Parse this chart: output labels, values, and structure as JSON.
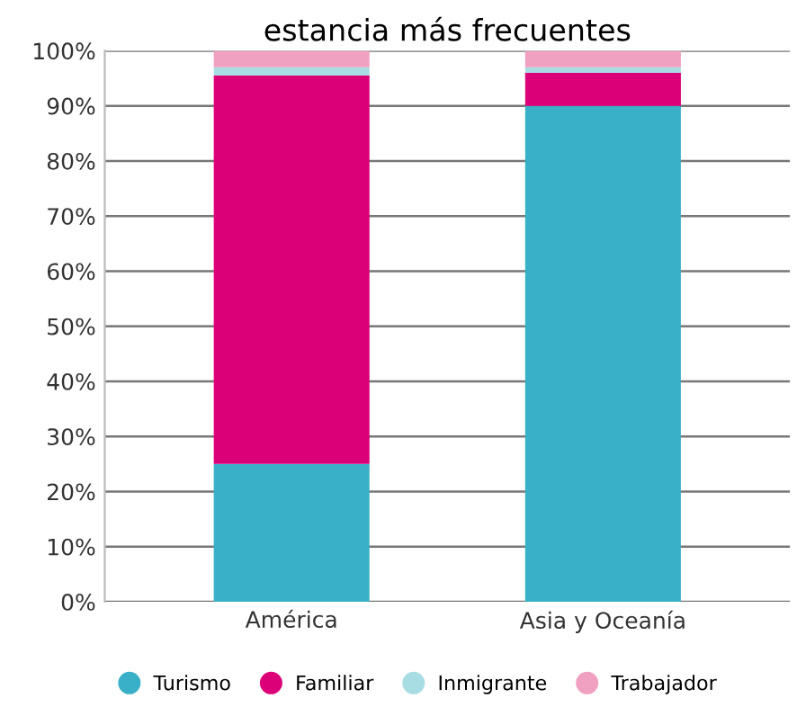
{
  "chart_data": {
    "type": "bar",
    "title": "estancia más frecuentes",
    "stacked": true,
    "categories": [
      "América",
      "Asia y Oceanía"
    ],
    "series": [
      {
        "name": "Turismo",
        "color": "#3ab0c8",
        "values": [
          25,
          90
        ]
      },
      {
        "name": "Familiar",
        "color": "#dc0078",
        "values": [
          70.5,
          6
        ]
      },
      {
        "name": "Inmigrante",
        "color": "#a8dde3",
        "values": [
          1.5,
          1
        ]
      },
      {
        "name": "Trabajador",
        "color": "#f0a0c0",
        "values": [
          3,
          3
        ]
      }
    ],
    "ylim": [
      0,
      100
    ],
    "yticks": [
      {
        "value": 0,
        "label": "0%"
      },
      {
        "value": 10,
        "label": "10%"
      },
      {
        "value": 20,
        "label": "20%"
      },
      {
        "value": 30,
        "label": "30%"
      },
      {
        "value": 40,
        "label": "40%"
      },
      {
        "value": 50,
        "label": "50%"
      },
      {
        "value": 60,
        "label": "60%"
      },
      {
        "value": 70,
        "label": "70%"
      },
      {
        "value": 80,
        "label": "80%"
      },
      {
        "value": 90,
        "label": "90%"
      },
      {
        "value": 100,
        "label": "100%"
      }
    ],
    "grid": "y",
    "legend": "bottom",
    "marker": "circle"
  }
}
